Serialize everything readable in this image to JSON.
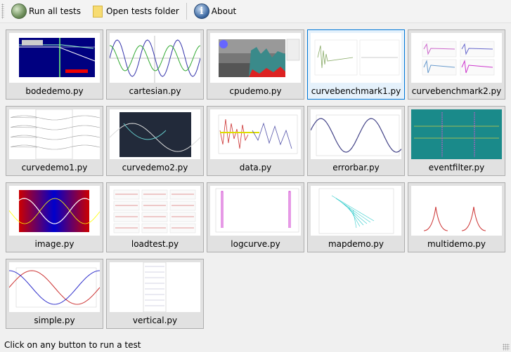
{
  "toolbar": {
    "run_all_label": "Run all tests",
    "open_folder_label": "Open tests folder",
    "about_label": "About",
    "run_icon": "run-icon",
    "folder_icon": "folder-icon",
    "about_icon": "info-icon"
  },
  "tiles": [
    {
      "label": "bodedemo.py",
      "thumb": "bode",
      "selected": false
    },
    {
      "label": "cartesian.py",
      "thumb": "cartesian",
      "selected": false
    },
    {
      "label": "cpudemo.py",
      "thumb": "cpu",
      "selected": false
    },
    {
      "label": "curvebenchmark1.py",
      "thumb": "bench1",
      "selected": true
    },
    {
      "label": "curvebenchmark2.py",
      "thumb": "bench2",
      "selected": false
    },
    {
      "label": "curvedemo1.py",
      "thumb": "curve1",
      "selected": false
    },
    {
      "label": "curvedemo2.py",
      "thumb": "curve2",
      "selected": false
    },
    {
      "label": "data.py",
      "thumb": "data",
      "selected": false
    },
    {
      "label": "errorbar.py",
      "thumb": "errorbar",
      "selected": false
    },
    {
      "label": "eventfilter.py",
      "thumb": "eventfilter",
      "selected": false
    },
    {
      "label": "image.py",
      "thumb": "image",
      "selected": false
    },
    {
      "label": "loadtest.py",
      "thumb": "loadtest",
      "selected": false
    },
    {
      "label": "logcurve.py",
      "thumb": "logcurve",
      "selected": false
    },
    {
      "label": "mapdemo.py",
      "thumb": "mapdemo",
      "selected": false
    },
    {
      "label": "multidemo.py",
      "thumb": "multidemo",
      "selected": false
    },
    {
      "label": "simple.py",
      "thumb": "simple",
      "selected": false
    },
    {
      "label": "vertical.py",
      "thumb": "vertical",
      "selected": false
    }
  ],
  "status_text": "Click on any button to run a test",
  "colors": {
    "accent": "#0078d7",
    "tile_bg": "#e1e1e1",
    "selected_bg": "#e5f1fb"
  }
}
